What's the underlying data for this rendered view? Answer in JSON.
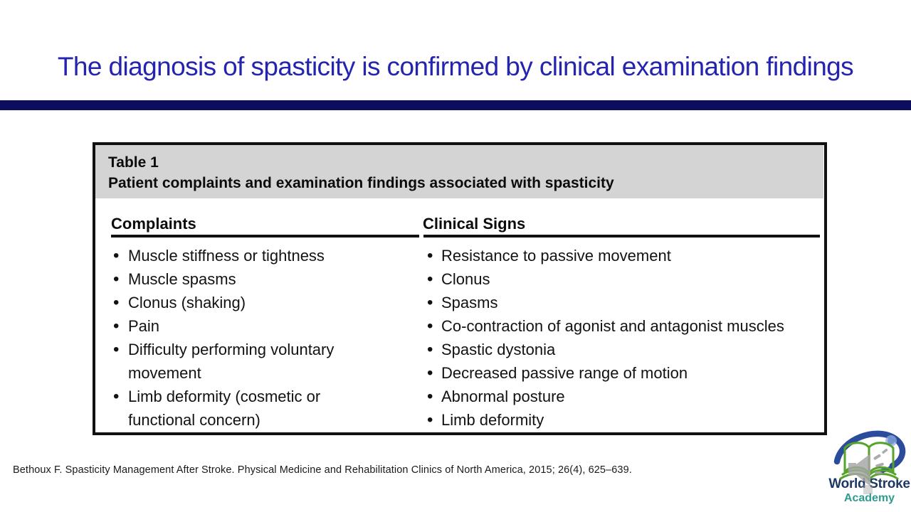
{
  "slide": {
    "title": "The diagnosis of spasticity is confirmed by clinical examination findings",
    "citation": "Bethoux F. Spasticity Management After Stroke. Physical Medicine and Rehabilitation Clinics of North America, 2015; 26(4), 625–639."
  },
  "table": {
    "label": "Table 1",
    "caption": "Patient complaints and examination findings associated with spasticity",
    "columns": [
      {
        "header": "Complaints",
        "items": [
          "Muscle stiffness or tightness",
          "Muscle spasms",
          "Clonus (shaking)",
          "Pain",
          "Difficulty performing voluntary movement",
          "Limb deformity (cosmetic or functional concern)"
        ]
      },
      {
        "header": "Clinical Signs",
        "items": [
          "Resistance to passive movement",
          "Clonus",
          "Spasms",
          "Co-contraction of agonist and antagonist muscles",
          "Spastic dystonia",
          "Decreased passive range of motion",
          "Abnormal posture",
          "Limb deformity"
        ]
      }
    ]
  },
  "logo": {
    "line1": "World Stroke",
    "line2": "Academy"
  },
  "colors": {
    "title_blue": "#2424AE",
    "divider_navy": "#0D0D5E",
    "table_header_gray": "#D4D4D4",
    "rule_black": "#111111",
    "logo_navy": "#1E3864",
    "logo_teal": "#2D9C8E",
    "logo_green": "#55A32B",
    "logo_swoosh_blue": "#2B4B9B",
    "speaker_gray": "#A6A6A6"
  }
}
